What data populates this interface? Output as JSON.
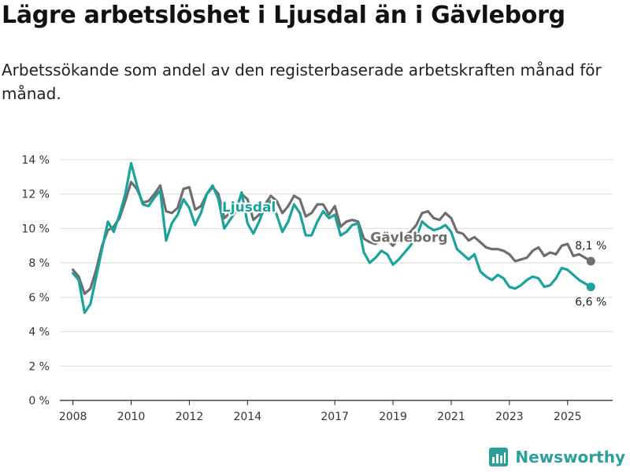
{
  "title": "Lägre arbetslöshet i Ljusdal än i Gävleborg",
  "subtitle": "Arbetssökande som andel av den registerbaserade arbetskraften månad för månad.",
  "brand": "Newsworthy",
  "colors": {
    "ljusdal": "#1aa39a",
    "gavleborg": "#6e6e6e",
    "grid": "#d9d9d9",
    "axis": "#222222",
    "brand": "#2aa198"
  },
  "chart_data": {
    "type": "line",
    "xlabel": "",
    "ylabel": "",
    "xlim": [
      2007.55,
      2026.55
    ],
    "ylim": [
      0,
      14
    ],
    "y_ticks": [
      0,
      2,
      4,
      6,
      8,
      10,
      12,
      14
    ],
    "y_tick_labels": [
      "0 %",
      "2 %",
      "4 %",
      "6 %",
      "8 %",
      "10 %",
      "12 %",
      "14 %"
    ],
    "x_ticks": [
      2008,
      2010,
      2012,
      2014,
      2017,
      2019,
      2021,
      2023,
      2025
    ],
    "x_tick_labels": [
      "2008",
      "2010",
      "2012",
      "2014",
      "2017",
      "2019",
      "2021",
      "2023",
      "2025"
    ],
    "series": [
      {
        "name": "Gävleborg",
        "color": "#6e6e6e",
        "label_x": 2019.55,
        "label_y": 9.5,
        "end_label": "8,1 %",
        "x": [
          2008.0,
          2008.2,
          2008.4,
          2008.6,
          2008.8,
          2009.0,
          2009.2,
          2009.4,
          2009.6,
          2009.8,
          2010.0,
          2010.2,
          2010.4,
          2010.6,
          2010.8,
          2011.0,
          2011.2,
          2011.4,
          2011.6,
          2011.8,
          2012.0,
          2012.2,
          2012.4,
          2012.6,
          2012.8,
          2013.0,
          2013.2,
          2013.4,
          2013.6,
          2013.8,
          2014.0,
          2014.2,
          2014.4,
          2014.6,
          2014.8,
          2015.0,
          2015.2,
          2015.4,
          2015.6,
          2015.8,
          2016.0,
          2016.2,
          2016.4,
          2016.6,
          2016.8,
          2017.0,
          2017.2,
          2017.4,
          2017.6,
          2017.8,
          2018.0,
          2018.2,
          2018.4,
          2018.6,
          2018.8,
          2019.0,
          2019.2,
          2019.4,
          2019.6,
          2019.8,
          2020.0,
          2020.2,
          2020.4,
          2020.6,
          2020.8,
          2021.0,
          2021.2,
          2021.4,
          2021.6,
          2021.8,
          2022.0,
          2022.2,
          2022.4,
          2022.6,
          2022.8,
          2023.0,
          2023.2,
          2023.4,
          2023.6,
          2023.8,
          2024.0,
          2024.2,
          2024.4,
          2024.6,
          2024.8,
          2025.0,
          2025.2,
          2025.4,
          2025.6,
          2025.8
        ],
        "values": [
          7.6,
          7.2,
          6.2,
          6.5,
          7.6,
          9.0,
          9.9,
          10.1,
          10.6,
          11.6,
          12.7,
          12.3,
          11.5,
          11.6,
          12.0,
          12.5,
          11.0,
          10.9,
          11.2,
          12.3,
          12.4,
          11.1,
          11.3,
          12.0,
          12.4,
          12.0,
          10.6,
          10.9,
          11.1,
          12.0,
          11.7,
          10.5,
          10.8,
          11.4,
          11.9,
          11.6,
          10.9,
          11.3,
          11.9,
          11.7,
          10.7,
          10.9,
          11.4,
          11.4,
          10.8,
          11.3,
          10.1,
          10.4,
          10.5,
          10.4,
          9.4,
          9.2,
          9.1,
          9.4,
          9.3,
          9.0,
          9.4,
          9.6,
          9.8,
          10.2,
          10.9,
          11.0,
          10.6,
          10.5,
          10.9,
          10.6,
          9.8,
          9.7,
          9.3,
          9.5,
          9.2,
          8.9,
          8.8,
          8.8,
          8.7,
          8.5,
          8.1,
          8.2,
          8.3,
          8.7,
          8.9,
          8.4,
          8.6,
          8.5,
          9.0,
          9.1,
          8.4,
          8.5,
          8.3,
          8.1
        ]
      },
      {
        "name": "Ljusdal",
        "color": "#1aa39a",
        "label_x": 2014.05,
        "label_y": 11.25,
        "end_label": "6,6 %",
        "x": [
          2008.0,
          2008.2,
          2008.4,
          2008.6,
          2008.8,
          2009.0,
          2009.2,
          2009.4,
          2009.6,
          2009.8,
          2010.0,
          2010.2,
          2010.4,
          2010.6,
          2010.8,
          2011.0,
          2011.2,
          2011.4,
          2011.6,
          2011.8,
          2012.0,
          2012.2,
          2012.4,
          2012.6,
          2012.8,
          2013.0,
          2013.2,
          2013.4,
          2013.6,
          2013.8,
          2014.0,
          2014.2,
          2014.4,
          2014.6,
          2014.8,
          2015.0,
          2015.2,
          2015.4,
          2015.6,
          2015.8,
          2016.0,
          2016.2,
          2016.4,
          2016.6,
          2016.8,
          2017.0,
          2017.2,
          2017.4,
          2017.6,
          2017.8,
          2018.0,
          2018.2,
          2018.4,
          2018.6,
          2018.8,
          2019.0,
          2019.2,
          2019.4,
          2019.6,
          2019.8,
          2020.0,
          2020.2,
          2020.4,
          2020.6,
          2020.8,
          2021.0,
          2021.2,
          2021.4,
          2021.6,
          2021.8,
          2022.0,
          2022.2,
          2022.4,
          2022.6,
          2022.8,
          2023.0,
          2023.2,
          2023.4,
          2023.6,
          2023.8,
          2024.0,
          2024.2,
          2024.4,
          2024.6,
          2024.8,
          2025.0,
          2025.2,
          2025.4,
          2025.6,
          2025.8
        ],
        "values": [
          7.4,
          7.0,
          5.1,
          5.6,
          7.2,
          8.8,
          10.4,
          9.8,
          10.8,
          12.0,
          13.8,
          12.5,
          11.4,
          11.3,
          11.8,
          12.2,
          9.3,
          10.3,
          10.8,
          11.7,
          11.2,
          10.2,
          10.9,
          12.0,
          12.5,
          11.7,
          10.0,
          10.5,
          11.0,
          12.1,
          10.3,
          9.7,
          10.4,
          11.3,
          11.6,
          10.8,
          9.8,
          10.4,
          11.4,
          10.9,
          9.6,
          9.6,
          10.4,
          11.0,
          10.6,
          10.8,
          9.6,
          9.8,
          10.2,
          10.3,
          8.6,
          8.0,
          8.3,
          8.7,
          8.5,
          7.9,
          8.2,
          8.6,
          9.0,
          9.5,
          10.4,
          10.1,
          9.9,
          10.0,
          10.2,
          9.8,
          8.8,
          8.5,
          8.2,
          8.5,
          7.5,
          7.2,
          7.0,
          7.3,
          7.1,
          6.6,
          6.5,
          6.7,
          7.0,
          7.2,
          7.1,
          6.6,
          6.7,
          7.1,
          7.7,
          7.6,
          7.3,
          7.0,
          6.8,
          6.6
        ]
      }
    ]
  }
}
